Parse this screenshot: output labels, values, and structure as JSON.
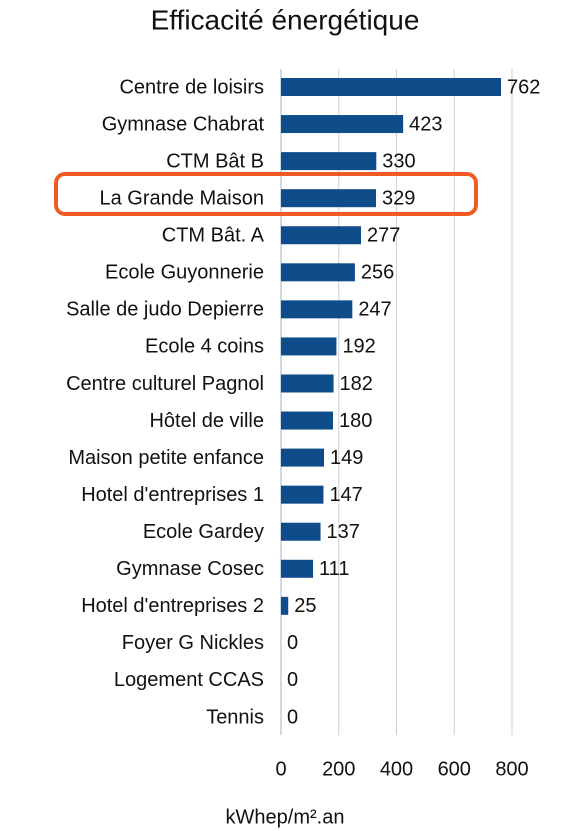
{
  "chart_data": {
    "type": "bar",
    "orientation": "horizontal",
    "title": "Efficacité énergétique",
    "x_label": "kWhep/m².an",
    "categories": [
      "Centre de loisirs",
      "Gymnase Chabrat",
      "CTM Bât B",
      "La Grande Maison",
      "CTM Bât. A",
      "Ecole Guyonnerie",
      "Salle de judo Depierre",
      "Ecole 4 coins",
      "Centre culturel Pagnol",
      "Hôtel de ville",
      "Maison petite enfance",
      "Hotel d'entreprises 1",
      "Ecole Gardey",
      "Gymnase Cosec",
      "Hotel d'entreprises 2",
      "Foyer G Nickles",
      "Logement CCAS",
      "Tennis"
    ],
    "values": [
      762,
      423,
      330,
      329,
      277,
      256,
      247,
      192,
      182,
      180,
      149,
      147,
      137,
      111,
      25,
      0,
      0,
      0
    ],
    "color": "#0f4c8a",
    "xlim": [
      0,
      800
    ],
    "xticks": [
      0,
      200,
      400,
      600,
      800
    ],
    "grid": true
  }
}
